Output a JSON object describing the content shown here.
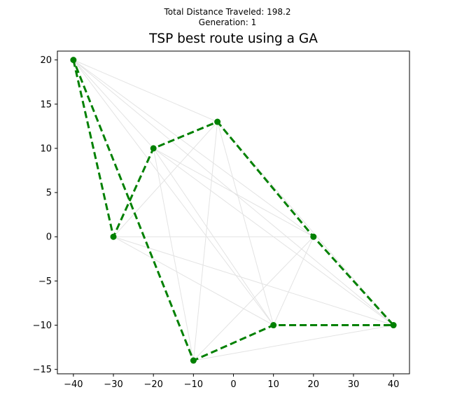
{
  "header": {
    "suptitle_line1": "Total Distance Traveled: 198.2",
    "suptitle_line2": "Generation: 1"
  },
  "chart_data": {
    "type": "scatter",
    "title": "TSP best route using a GA",
    "xlabel": "",
    "ylabel": "",
    "xlim": [
      -44,
      44
    ],
    "ylim": [
      -15.5,
      21
    ],
    "xticks": [
      -40,
      -30,
      -20,
      -10,
      0,
      10,
      20,
      30,
      40
    ],
    "yticks": [
      -15,
      -10,
      -5,
      0,
      5,
      10,
      15,
      20
    ],
    "grid": false,
    "cities": [
      {
        "x": -40,
        "y": 20
      },
      {
        "x": -30,
        "y": 0
      },
      {
        "x": -20,
        "y": 10
      },
      {
        "x": -4,
        "y": 13
      },
      {
        "x": 20,
        "y": 0
      },
      {
        "x": 40,
        "y": -10
      },
      {
        "x": 10,
        "y": -10
      },
      {
        "x": -10,
        "y": -14
      }
    ],
    "best_route_order": [
      0,
      1,
      2,
      3,
      4,
      5,
      6,
      7,
      0
    ],
    "background_edges": [
      [
        0,
        3
      ],
      [
        0,
        2
      ],
      [
        0,
        4
      ],
      [
        0,
        6
      ],
      [
        0,
        5
      ],
      [
        1,
        3
      ],
      [
        1,
        4
      ],
      [
        1,
        5
      ],
      [
        1,
        6
      ],
      [
        2,
        4
      ],
      [
        2,
        5
      ],
      [
        2,
        6
      ],
      [
        2,
        7
      ],
      [
        3,
        6
      ],
      [
        3,
        7
      ],
      [
        3,
        5
      ],
      [
        4,
        7
      ],
      [
        4,
        6
      ],
      [
        5,
        7
      ]
    ],
    "colors": {
      "route": "#008000",
      "city": "#008000",
      "background_edge": "#e3e3e3"
    }
  }
}
